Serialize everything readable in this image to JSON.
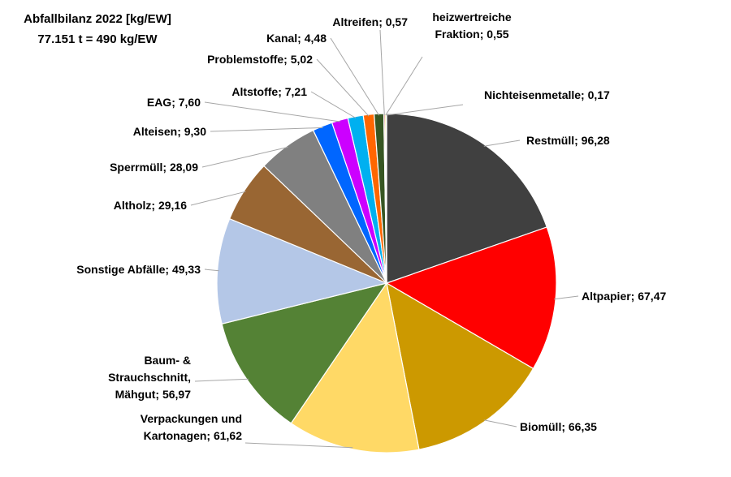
{
  "chart_data": {
    "type": "pie",
    "title": "Abfallbilanz 2022 [kg/EW]",
    "subtitle": "77.151 t = 490 kg/EW",
    "slices": [
      {
        "label": "Restmüll",
        "value": 96.28,
        "value_text": "96,28",
        "color": "#404040"
      },
      {
        "label": "Altpapier",
        "value": 67.47,
        "value_text": "67,47",
        "color": "#ff0000"
      },
      {
        "label": "Biomüll",
        "value": 66.35,
        "value_text": "66,35",
        "color": "#cc9900"
      },
      {
        "label": "Verpackungen und Kartonagen",
        "value": 61.62,
        "value_text": "61,62",
        "color": "#ffd966"
      },
      {
        "label": "Baum- & Strauchschnitt, Mähgut",
        "value": 56.97,
        "value_text": "56,97",
        "color": "#548235"
      },
      {
        "label": "Sonstige Abfälle",
        "value": 49.33,
        "value_text": "49,33",
        "color": "#b4c7e7"
      },
      {
        "label": "Altholz",
        "value": 29.16,
        "value_text": "29,16",
        "color": "#996633"
      },
      {
        "label": "Sperrmüll",
        "value": 28.09,
        "value_text": "28,09",
        "color": "#808080"
      },
      {
        "label": "Alteisen",
        "value": 9.3,
        "value_text": "9,30",
        "color": "#0066ff"
      },
      {
        "label": "EAG",
        "value": 7.6,
        "value_text": "7,60",
        "color": "#cc00ff"
      },
      {
        "label": "Altstoffe",
        "value": 7.21,
        "value_text": "7,21",
        "color": "#00b0f0"
      },
      {
        "label": "Problemstoffe",
        "value": 5.02,
        "value_text": "5,02",
        "color": "#ff6600"
      },
      {
        "label": "Kanal",
        "value": 4.48,
        "value_text": "4,48",
        "color": "#375623"
      },
      {
        "label": "Altreifen",
        "value": 0.57,
        "value_text": "0,57",
        "color": "#c00000"
      },
      {
        "label": "heizwertreiche Fraktion",
        "value": 0.55,
        "value_text": "0,55",
        "color": "#ffff00"
      },
      {
        "label": "Nichteisenmetalle",
        "value": 0.17,
        "value_text": "0,17",
        "color": "#7030a0"
      }
    ]
  }
}
